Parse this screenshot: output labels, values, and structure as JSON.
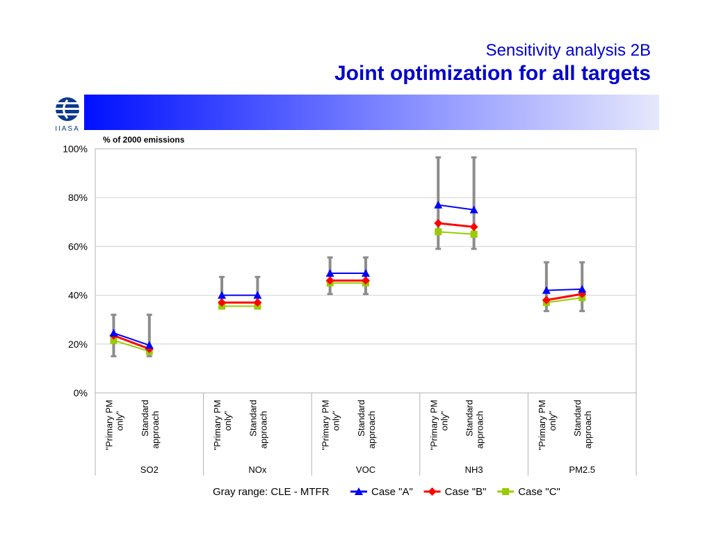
{
  "slide": {
    "title_line1": "Sensitivity analysis 2B",
    "title_line2": "Joint optimization for all targets",
    "logo_text": "IIASA"
  },
  "colors": {
    "title": "#0000cc",
    "case_a": "#0000ff",
    "case_b": "#ff0000",
    "case_c": "#99cc00",
    "range": "#8c8c8c"
  },
  "chart_data": {
    "type": "line",
    "ylabel": "% of 2000 emissions",
    "ylim": [
      0,
      1
    ],
    "yticks": [
      "0%",
      "20%",
      "40%",
      "60%",
      "80%",
      "100%"
    ],
    "groups": [
      {
        "name": "SO2",
        "categories": [
          "\"Primary PM only\"",
          "Standard approach"
        ]
      },
      {
        "name": "NOx",
        "categories": [
          "\"Primary PM only\"",
          "Standard approach"
        ]
      },
      {
        "name": "VOC",
        "categories": [
          "\"Primary PM only\"",
          "Standard approach"
        ]
      },
      {
        "name": "NH3",
        "categories": [
          "\"Primary PM only\"",
          "Standard approach"
        ]
      },
      {
        "name": "PM2.5",
        "categories": [
          "\"Primary PM only\"",
          "Standard approach"
        ]
      }
    ],
    "range_label": "Gray range: CLE - MTFR",
    "ranges": [
      [
        [
          0.15,
          0.32
        ],
        [
          0.15,
          0.32
        ]
      ],
      [
        [
          0.35,
          0.475
        ],
        [
          0.35,
          0.475
        ]
      ],
      [
        [
          0.405,
          0.555
        ],
        [
          0.405,
          0.555
        ]
      ],
      [
        [
          0.59,
          0.965
        ],
        [
          0.59,
          0.965
        ]
      ],
      [
        [
          0.335,
          0.535
        ],
        [
          0.335,
          0.535
        ]
      ]
    ],
    "series": [
      {
        "name": "Case \"A\"",
        "marker": "triangle",
        "values": [
          [
            0.245,
            0.195
          ],
          [
            0.4,
            0.4
          ],
          [
            0.49,
            0.49
          ],
          [
            0.77,
            0.75
          ],
          [
            0.42,
            0.425
          ]
        ]
      },
      {
        "name": "Case \"B\"",
        "marker": "diamond",
        "values": [
          [
            0.235,
            0.18
          ],
          [
            0.37,
            0.37
          ],
          [
            0.46,
            0.46
          ],
          [
            0.695,
            0.68
          ],
          [
            0.38,
            0.405
          ]
        ]
      },
      {
        "name": "Case \"C\"",
        "marker": "square",
        "values": [
          [
            0.215,
            0.17
          ],
          [
            0.355,
            0.355
          ],
          [
            0.45,
            0.45
          ],
          [
            0.66,
            0.65
          ],
          [
            0.37,
            0.39
          ]
        ]
      }
    ],
    "grid": true,
    "legend_position": "bottom"
  }
}
